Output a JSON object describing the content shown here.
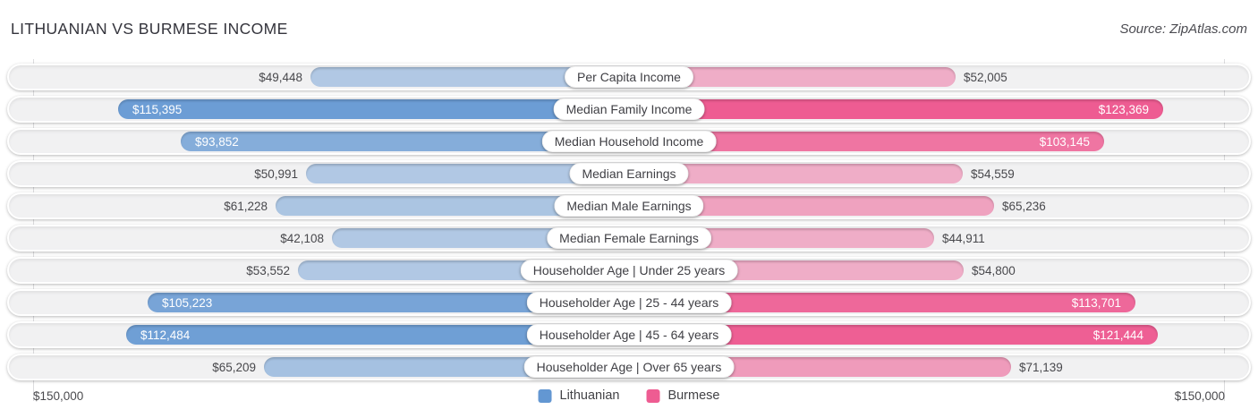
{
  "header": {
    "title": "LITHUANIAN VS BURMESE INCOME",
    "source": "Source: ZipAtlas.com"
  },
  "axis": {
    "left_label": "$150,000",
    "right_label": "$150,000"
  },
  "legend": [
    {
      "label": "Lithuanian",
      "color": "#6397d2"
    },
    {
      "label": "Burmese",
      "color": "#ee5c92"
    }
  ],
  "chart_data": {
    "type": "bar",
    "orientation": "bidirectional-horizontal",
    "title": "LITHUANIAN VS BURMESE INCOME",
    "xlim": [
      0,
      150000
    ],
    "axis_tick_label": "$150,000",
    "legend_position": "bottom-center",
    "categories": [
      "Per Capita Income",
      "Median Family Income",
      "Median Household Income",
      "Median Earnings",
      "Median Male Earnings",
      "Median Female Earnings",
      "Householder Age | Under 25 years",
      "Householder Age | 25 - 44 years",
      "Householder Age | 45 - 64 years",
      "Householder Age | Over 65 years"
    ],
    "series": [
      {
        "name": "Lithuanian",
        "side": "left",
        "color": "#6397d2",
        "values": [
          49448,
          115395,
          93852,
          50991,
          61228,
          42108,
          53552,
          105223,
          112484,
          65209
        ]
      },
      {
        "name": "Burmese",
        "side": "right",
        "color": "#ee5c92",
        "values": [
          52005,
          123369,
          103145,
          54559,
          65236,
          44911,
          54800,
          113701,
          121444,
          71139
        ]
      }
    ]
  }
}
